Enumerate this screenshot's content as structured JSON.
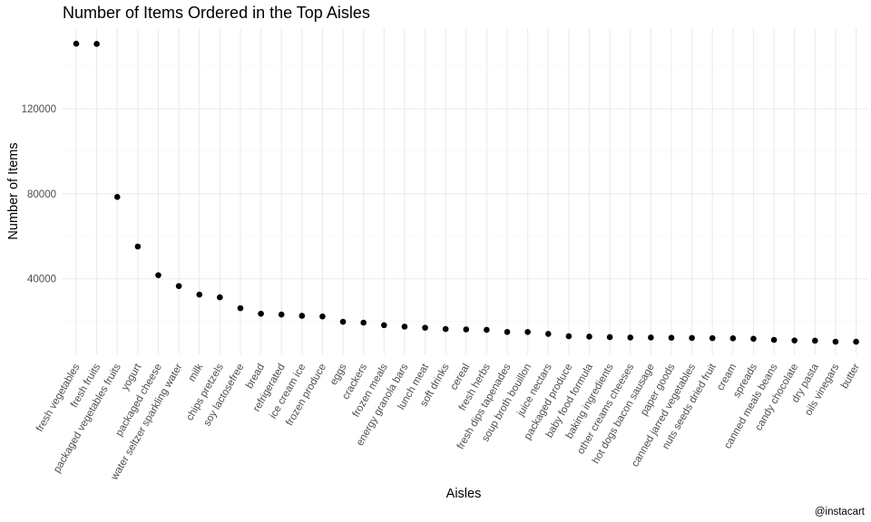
{
  "chart_data": {
    "type": "scatter",
    "title": "Number of Items Ordered in the Top Aisles",
    "xlabel": "Aisles",
    "ylabel": "Number of Items",
    "caption": "@instacart",
    "grid": true,
    "ylim": [
      0,
      160000
    ],
    "yticks": [
      40000,
      80000,
      120000
    ],
    "ytick_labels": [
      "40000",
      "80000",
      "120000"
    ],
    "categories": [
      "fresh vegetables",
      "fresh fruits",
      "packaged vegetables fruits",
      "yogurt",
      "packaged cheese",
      "water seltzer sparkling water",
      "milk",
      "chips pretzels",
      "soy lactosefree",
      "bread",
      "refrigerated",
      "ice cream ice",
      "frozen produce",
      "eggs",
      "crackers",
      "frozen meals",
      "energy granola bars",
      "lunch meat",
      "soft drinks",
      "cereal",
      "fresh herbs",
      "fresh dips tapenades",
      "soup broth bouillon",
      "juice nectars",
      "packaged produce",
      "baby food formula",
      "baking ingredients",
      "other creams cheeses",
      "hot dogs bacon sausage",
      "paper goods",
      "canned jarred vegetables",
      "nuts seeds dried fruit",
      "cream",
      "spreads",
      "canned meals beans",
      "candy chocolate",
      "dry pasta",
      "oils vinegars",
      "butter"
    ],
    "values": [
      150600,
      150500,
      78500,
      55200,
      41700,
      36600,
      32600,
      31300,
      26200,
      23600,
      23200,
      22600,
      22300,
      19800,
      19400,
      18200,
      17500,
      17000,
      16400,
      16200,
      16000,
      15000,
      15000,
      14100,
      13000,
      12800,
      12600,
      12400,
      12400,
      12300,
      12200,
      12100,
      12000,
      11800,
      11300,
      11000,
      10900,
      10400,
      10400
    ]
  }
}
